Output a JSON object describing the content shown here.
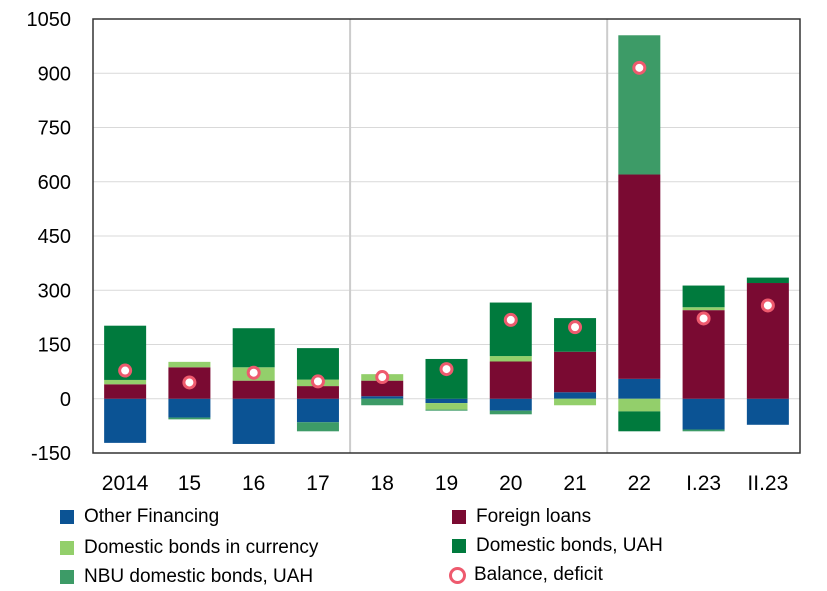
{
  "chart_data": {
    "type": "bar",
    "stacked": true,
    "categories": [
      "2014",
      "15",
      "16",
      "17",
      "18",
      "19",
      "20",
      "21",
      "22",
      "I.23",
      "II.23"
    ],
    "ylim": [
      -150,
      1050
    ],
    "yticks": [
      -150,
      0,
      150,
      300,
      450,
      600,
      750,
      900,
      1050
    ],
    "grid": true,
    "legend_position": "bottom",
    "series": [
      {
        "name": "Other Financing",
        "color": "#0b5394",
        "values": [
          -122,
          -52,
          -125,
          -65,
          7,
          -12,
          -33,
          18,
          55,
          -85,
          -72
        ]
      },
      {
        "name": "Foreign loans",
        "color": "#7a0a32",
        "values": [
          40,
          87,
          50,
          35,
          43,
          0,
          103,
          112,
          565,
          245,
          320
        ]
      },
      {
        "name": "Domestic bonds in currency",
        "color": "#93cf6b",
        "values": [
          12,
          15,
          37,
          18,
          18,
          -18,
          15,
          -18,
          -35,
          8,
          0
        ]
      },
      {
        "name": "Domestic bonds, UAH",
        "color": "#007a3d",
        "values": [
          150,
          0,
          108,
          87,
          0,
          110,
          148,
          93,
          -55,
          60,
          15
        ]
      },
      {
        "name": "NBU domestic bonds, UAH",
        "color": "#3d9b67",
        "values": [
          0,
          -5,
          0,
          -25,
          -18,
          -3,
          -10,
          0,
          385,
          -5,
          0
        ]
      }
    ],
    "balance": {
      "name": "Balance, deficit",
      "color": "#ee5a6e",
      "values": [
        78,
        45,
        72,
        48,
        60,
        82,
        218,
        198,
        915,
        222,
        258
      ]
    }
  }
}
